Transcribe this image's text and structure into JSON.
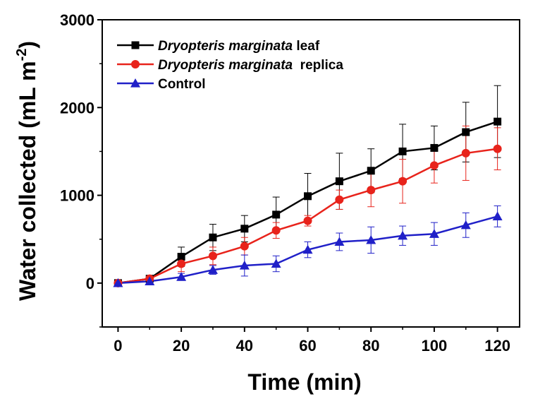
{
  "chart_data": {
    "type": "line",
    "xlabel": "Time (min)",
    "ylabel": "Water collected (mL m",
    "ylabel_sup": "-2",
    "ylabel_close": ")",
    "xlim": [
      -5,
      127
    ],
    "ylim": [
      -500,
      3000
    ],
    "x_ticks": [
      0,
      20,
      40,
      60,
      80,
      100,
      120
    ],
    "x_tick_labels": [
      "0",
      "20",
      "40",
      "60",
      "80",
      "100",
      "120"
    ],
    "y_ticks": [
      0,
      1000,
      2000,
      3000
    ],
    "y_tick_labels": [
      "0",
      "1000",
      "2000",
      "3000"
    ],
    "legend_position": "top-left",
    "x": [
      0,
      10,
      20,
      30,
      40,
      50,
      60,
      70,
      80,
      90,
      100,
      110,
      120
    ],
    "series": [
      {
        "name": "leaf",
        "name_italic": "Dryopteris marginata",
        "name_plain": " leaf",
        "color": "#000000",
        "marker": "square",
        "values": [
          0,
          50,
          300,
          520,
          620,
          780,
          990,
          1160,
          1280,
          1500,
          1540,
          1720,
          1840
        ],
        "errors": [
          0,
          30,
          110,
          150,
          150,
          200,
          260,
          320,
          250,
          310,
          250,
          340,
          410
        ]
      },
      {
        "name": "replica",
        "name_italic": "Dryopteris marginata",
        "name_plain": "  replica",
        "color": "#e8231b",
        "marker": "circle",
        "values": [
          0,
          50,
          220,
          310,
          420,
          600,
          710,
          950,
          1060,
          1160,
          1340,
          1480,
          1530
        ],
        "errors": [
          0,
          30,
          90,
          100,
          100,
          90,
          60,
          110,
          190,
          250,
          200,
          310,
          240
        ]
      },
      {
        "name": "Control",
        "name_italic": "",
        "name_plain": "Control",
        "color": "#2020c8",
        "marker": "triangle",
        "values": [
          0,
          20,
          70,
          150,
          200,
          220,
          380,
          470,
          490,
          540,
          560,
          660,
          760
        ],
        "errors": [
          0,
          20,
          40,
          50,
          120,
          90,
          90,
          100,
          150,
          110,
          130,
          140,
          120
        ]
      }
    ]
  }
}
